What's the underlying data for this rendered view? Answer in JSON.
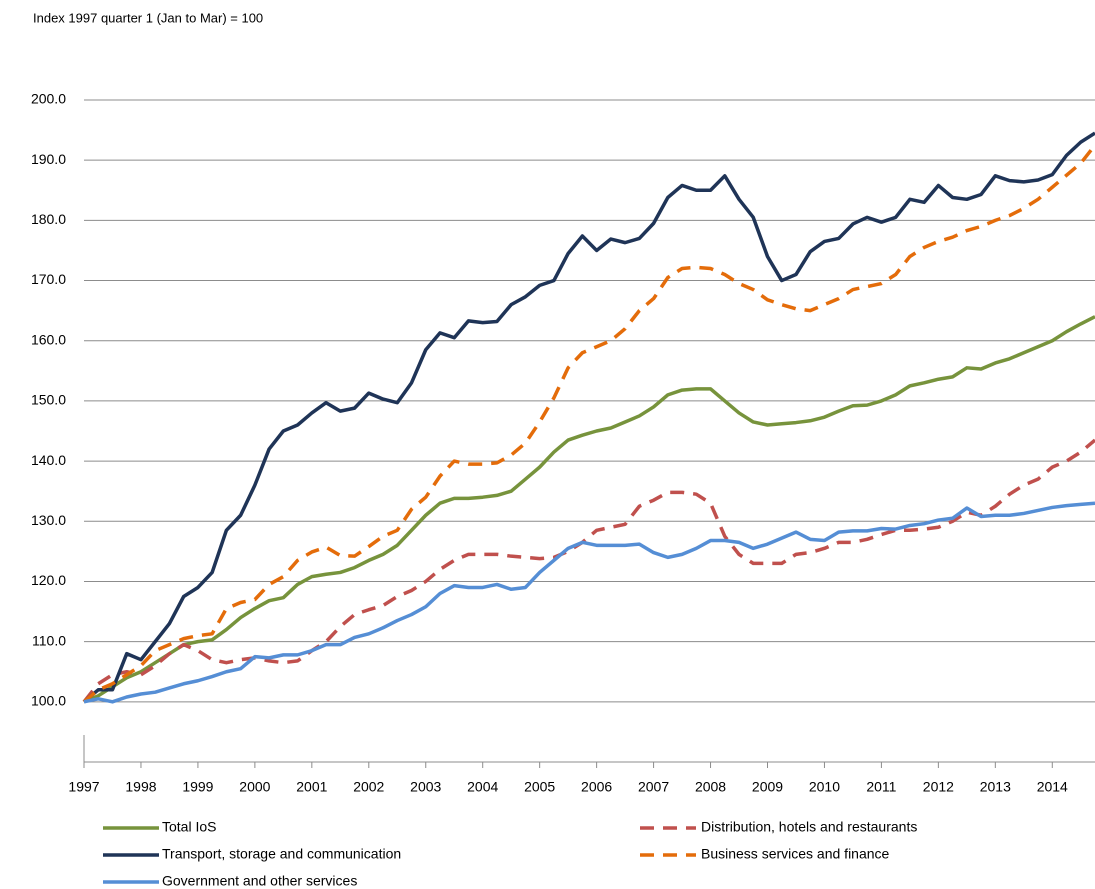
{
  "chart_data": {
    "type": "line",
    "subtitle": "Index 1997 quarter 1 (Jan to Mar) = 100",
    "x": [
      1997,
      1997.25,
      1997.5,
      1997.75,
      1998,
      1998.25,
      1998.5,
      1998.75,
      1999,
      1999.25,
      1999.5,
      1999.75,
      2000,
      2000.25,
      2000.5,
      2000.75,
      2001,
      2001.25,
      2001.5,
      2001.75,
      2002,
      2002.25,
      2002.5,
      2002.75,
      2003,
      2003.25,
      2003.5,
      2003.75,
      2004,
      2004.25,
      2004.5,
      2004.75,
      2005,
      2005.25,
      2005.5,
      2005.75,
      2006,
      2006.25,
      2006.5,
      2006.75,
      2007,
      2007.25,
      2007.5,
      2007.75,
      2008,
      2008.25,
      2008.5,
      2008.75,
      2009,
      2009.25,
      2009.5,
      2009.75,
      2010,
      2010.25,
      2010.5,
      2010.75,
      2011,
      2011.25,
      2011.5,
      2011.75,
      2012,
      2012.25,
      2012.5,
      2012.75,
      2013,
      2013.25,
      2013.5,
      2013.75,
      2014,
      2014.25,
      2014.5,
      2014.75
    ],
    "xlim": [
      1997,
      2014.75
    ],
    "xticks": [
      1997,
      1998,
      1999,
      2000,
      2001,
      2002,
      2003,
      2004,
      2005,
      2006,
      2007,
      2008,
      2009,
      2010,
      2011,
      2012,
      2013,
      2014
    ],
    "ylim": [
      90,
      200
    ],
    "yticks": [
      {
        "value": 100,
        "label": "100.0"
      },
      {
        "value": 110,
        "label": "110.0"
      },
      {
        "value": 120,
        "label": "120.0"
      },
      {
        "value": 130,
        "label": "130.0"
      },
      {
        "value": 140,
        "label": "140.0"
      },
      {
        "value": 150,
        "label": "150.0"
      },
      {
        "value": 160,
        "label": "160.0"
      },
      {
        "value": 170,
        "label": "170.0"
      },
      {
        "value": 180,
        "label": "180.0"
      },
      {
        "value": 190,
        "label": "190.0"
      },
      {
        "value": 200,
        "label": "200.0"
      }
    ],
    "grid": true,
    "legend": "bottom",
    "series": [
      {
        "name": "Total IoS",
        "color": "#77933c",
        "dashed": false,
        "values": [
          100,
          101,
          102.5,
          104,
          105,
          106.5,
          108,
          109.5,
          110,
          110.3,
          112,
          114,
          115.5,
          116.8,
          117.3,
          119.5,
          120.8,
          121.2,
          121.5,
          122.3,
          123.5,
          124.5,
          126,
          128.5,
          131,
          133,
          133.8,
          133.8,
          134,
          134.3,
          135,
          137,
          139,
          141.5,
          143.5,
          144.3,
          145,
          145.5,
          146.5,
          147.5,
          149,
          151,
          151.8,
          152,
          152,
          150,
          148,
          146.5,
          146,
          146.2,
          146.4,
          146.7,
          147.3,
          148.3,
          149.2,
          149.3,
          150,
          151,
          152.5,
          153,
          153.6,
          154,
          155.5,
          155.3,
          156.3,
          157,
          158,
          159,
          160,
          161.5,
          162.8,
          164
        ]
      },
      {
        "name": "Distribution, hotels and restaurants",
        "color": "#c0504d",
        "dashed": true,
        "values": [
          100,
          103,
          104.5,
          105,
          104.5,
          106,
          108,
          109.5,
          108.5,
          107,
          106.5,
          107,
          107.3,
          106.8,
          106.5,
          106.8,
          108.5,
          110,
          112.5,
          114.5,
          115.3,
          116,
          117.5,
          118.5,
          120,
          122,
          123.5,
          124.5,
          124.5,
          124.5,
          124.2,
          124,
          123.8,
          124,
          125,
          126.5,
          128.5,
          129,
          129.5,
          132.5,
          133.5,
          134.8,
          134.8,
          134.5,
          133,
          127.5,
          124.5,
          123,
          123,
          123,
          124.5,
          124.8,
          125.5,
          126.5,
          126.5,
          127,
          127.8,
          128.5,
          128.5,
          128.7,
          129,
          130,
          131.5,
          131,
          132.5,
          134.5,
          136,
          137,
          139,
          140,
          141.5,
          143.5
        ]
      },
      {
        "name": "Transport, storage and communication",
        "color": "#1f3457",
        "dashed": false,
        "values": [
          100,
          102,
          102,
          108,
          107,
          110,
          113,
          117.5,
          119,
          121.5,
          128.5,
          131,
          136,
          142,
          145,
          146,
          148,
          149.7,
          148.3,
          148.8,
          151.3,
          150.3,
          149.7,
          153,
          158.5,
          161.3,
          160.5,
          163.3,
          163,
          163.2,
          166,
          167.3,
          169.2,
          170,
          174.5,
          177.4,
          175,
          176.9,
          176.3,
          177,
          179.5,
          183.8,
          185.8,
          185,
          185,
          187.4,
          183.5,
          180.5,
          174,
          170,
          171,
          174.8,
          176.5,
          177,
          179.4,
          180.5,
          179.7,
          180.5,
          183.5,
          183,
          185.8,
          183.8,
          183.5,
          184.3,
          187.4,
          186.6,
          186.4,
          186.7,
          187.6,
          190.8,
          193,
          194.5
        ]
      },
      {
        "name": "Business services and finance",
        "color": "#e46c0a",
        "dashed": true,
        "values": [
          100,
          102,
          103,
          104.5,
          106,
          108.5,
          109.5,
          110.5,
          111,
          111.3,
          115.5,
          116.5,
          117,
          119.5,
          120.8,
          123.5,
          124.9,
          125.7,
          124.3,
          124.2,
          125.8,
          127.5,
          128.5,
          132,
          134,
          137.5,
          140,
          139.5,
          139.5,
          139.7,
          141,
          143,
          146.5,
          150.5,
          155.5,
          158,
          159,
          160,
          162,
          165,
          167,
          170.5,
          172,
          172.2,
          172,
          171,
          169.5,
          168.5,
          166.8,
          166,
          165.3,
          165,
          166,
          167,
          168.5,
          169,
          169.5,
          171,
          174,
          175.5,
          176.5,
          177.2,
          178.3,
          179,
          180,
          180.8,
          182,
          183.5,
          185.5,
          187.5,
          189.5,
          192.5
        ]
      },
      {
        "name": "Government and other services",
        "color": "#558ed5",
        "dashed": false,
        "values": [
          100,
          100.5,
          100,
          100.8,
          101.3,
          101.6,
          102.3,
          103,
          103.5,
          104.2,
          105,
          105.5,
          107.5,
          107.3,
          107.8,
          107.8,
          108.5,
          109.5,
          109.5,
          110.7,
          111.3,
          112.3,
          113.5,
          114.5,
          115.8,
          118,
          119.3,
          119,
          119,
          119.5,
          118.7,
          119,
          121.5,
          123.5,
          125.5,
          126.5,
          126,
          126,
          126,
          126.2,
          124.8,
          124,
          124.5,
          125.5,
          126.8,
          126.8,
          126.5,
          125.5,
          126.2,
          127.2,
          128.2,
          127,
          126.8,
          128.2,
          128.4,
          128.4,
          128.8,
          128.7,
          129.3,
          129.6,
          130.2,
          130.5,
          132.2,
          130.8,
          131,
          131,
          131.3,
          131.8,
          132.3,
          132.6,
          132.8,
          133
        ]
      }
    ]
  }
}
